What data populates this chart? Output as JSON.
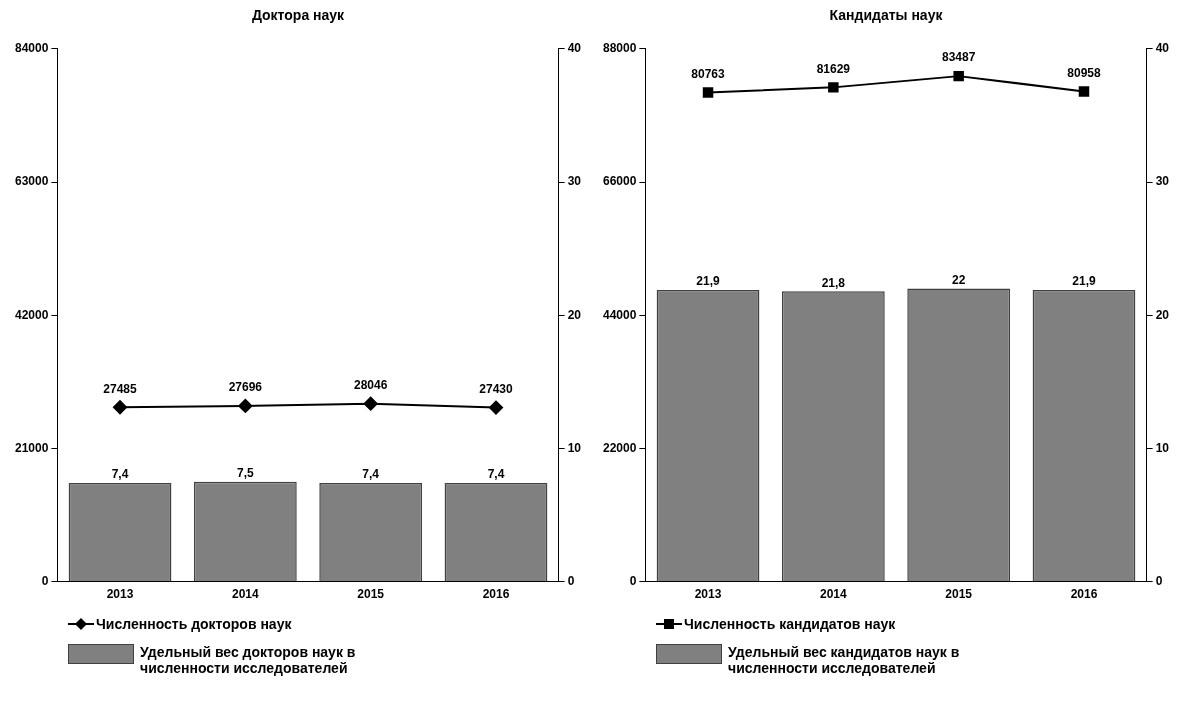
{
  "chart_data": [
    {
      "type": "bar",
      "title": "Доктора наук",
      "categories": [
        "2013",
        "2014",
        "2015",
        "2016"
      ],
      "ylim": [
        0,
        84000
      ],
      "yticks": [
        0,
        21000,
        42000,
        63000,
        84000
      ],
      "y2lim": [
        0,
        40
      ],
      "y2ticks": [
        0,
        10,
        20,
        30,
        40
      ],
      "grid": false,
      "legend": "bottom",
      "series": [
        {
          "name": "Численность докторов наук",
          "type": "line",
          "color": "#000000",
          "marker": "diamond",
          "values": [
            27485,
            27696,
            28046,
            27430
          ],
          "value_labels": [
            "27485",
            "27696",
            "28046",
            "27430"
          ]
        },
        {
          "name": "Удельный вес докторов наук в численности исследователей",
          "axis": "y2",
          "color": "#808080",
          "values": [
            7.4,
            7.5,
            7.4,
            7.4
          ],
          "value_labels": [
            "7,4",
            "7,5",
            "7,4",
            "7,4"
          ]
        }
      ]
    },
    {
      "type": "bar",
      "title": "Кандидаты наук",
      "categories": [
        "2013",
        "2014",
        "2015",
        "2016"
      ],
      "ylim": [
        0,
        88000
      ],
      "yticks": [
        0,
        22000,
        44000,
        66000,
        88000
      ],
      "y2lim": [
        0,
        40
      ],
      "y2ticks": [
        0,
        10,
        20,
        30,
        40
      ],
      "grid": false,
      "legend": "bottom",
      "series": [
        {
          "name": "Численность кандидатов наук",
          "type": "line",
          "color": "#000000",
          "marker": "square",
          "values": [
            80763,
            81629,
            83487,
            80958
          ],
          "value_labels": [
            "80763",
            "81629",
            "83487",
            "80958"
          ]
        },
        {
          "name": "Удельный вес кандидатов наук в численности исследователей",
          "axis": "y2",
          "color": "#808080",
          "values": [
            21.9,
            21.8,
            22,
            21.9
          ],
          "value_labels": [
            "21,9",
            "21,8",
            "22",
            "21,9"
          ]
        }
      ]
    }
  ]
}
